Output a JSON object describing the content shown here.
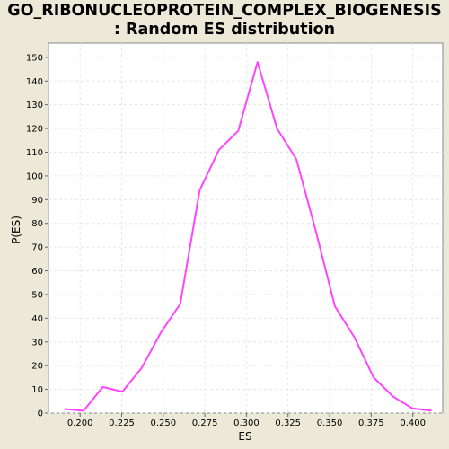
{
  "chart_data": {
    "type": "line",
    "title_lines": [
      "GO_RIBONUCLEOPROTEIN_COMPLEX_BIOGENESIS",
      ": Random ES distribution"
    ],
    "xlabel": "ES",
    "ylabel": "P(ES)",
    "xlim": [
      0.181,
      0.418
    ],
    "ylim": [
      0,
      156
    ],
    "xticks": [
      0.2,
      0.225,
      0.25,
      0.275,
      0.3,
      0.325,
      0.35,
      0.375,
      0.4
    ],
    "xtick_labels": [
      "0.200",
      "0.225",
      "0.250",
      "0.275",
      "0.300",
      "0.325",
      "0.350",
      "0.375",
      "0.400"
    ],
    "yticks": [
      0,
      10,
      20,
      30,
      40,
      50,
      60,
      70,
      80,
      90,
      100,
      110,
      120,
      130,
      140,
      150
    ],
    "ytick_labels": [
      "0",
      "10",
      "20",
      "30",
      "40",
      "50",
      "60",
      "70",
      "80",
      "90",
      "100",
      "110",
      "120",
      "130",
      "140",
      "150"
    ],
    "grid": true,
    "line_color": "#ff44ff",
    "plot_background": "#ffffff",
    "series": [
      {
        "x": [
          0.1905,
          0.2021,
          0.2137,
          0.2254,
          0.237,
          0.2486,
          0.2602,
          0.2719,
          0.2835,
          0.2951,
          0.3067,
          0.3184,
          0.33,
          0.3416,
          0.3532,
          0.3649,
          0.3765,
          0.3881,
          0.3997,
          0.4113
        ],
        "y": [
          1.7,
          1.0,
          11.0,
          9.0,
          19.0,
          34.0,
          46.0,
          94.0,
          111.0,
          119.0,
          148.0,
          120.0,
          107.0,
          77.0,
          45.0,
          32.0,
          15.0,
          7.0,
          2.0,
          1.0
        ]
      }
    ]
  }
}
